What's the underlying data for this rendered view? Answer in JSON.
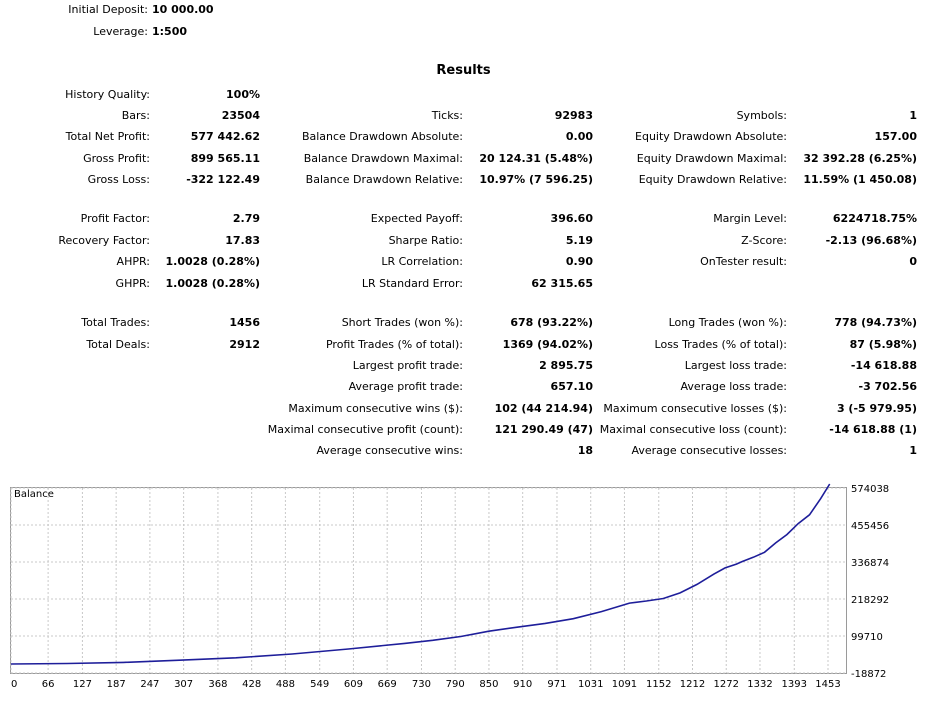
{
  "header": {
    "initial_deposit_label": "Initial Deposit:",
    "initial_deposit_value": "10 000.00",
    "leverage_label": "Leverage:",
    "leverage_value": "1:500"
  },
  "results_title": "Results",
  "stats": {
    "col1": [
      {
        "label": "History Quality:",
        "value": "100%"
      },
      {
        "label": "Bars:",
        "value": "23504"
      },
      {
        "label": "Total Net Profit:",
        "value": "577 442.62"
      },
      {
        "label": "Gross Profit:",
        "value": "899 565.11"
      },
      {
        "label": "Gross Loss:",
        "value": "-322 122.49"
      },
      {
        "label": "Profit Factor:",
        "value": "2.79"
      },
      {
        "label": "Recovery Factor:",
        "value": "17.83"
      },
      {
        "label": "AHPR:",
        "value": "1.0028 (0.28%)"
      },
      {
        "label": "GHPR:",
        "value": "1.0028 (0.28%)"
      },
      {
        "label": "Total Trades:",
        "value": "1456"
      },
      {
        "label": "Total Deals:",
        "value": "2912"
      }
    ],
    "col2": [
      {
        "label": "Ticks:",
        "value": "92983"
      },
      {
        "label": "Balance Drawdown Absolute:",
        "value": "0.00"
      },
      {
        "label": "Balance Drawdown Maximal:",
        "value": "20 124.31 (5.48%)"
      },
      {
        "label": "Balance Drawdown Relative:",
        "value": "10.97% (7 596.25)"
      },
      {
        "label": "Expected Payoff:",
        "value": "396.60"
      },
      {
        "label": "Sharpe Ratio:",
        "value": "5.19"
      },
      {
        "label": "LR Correlation:",
        "value": "0.90"
      },
      {
        "label": "LR Standard Error:",
        "value": "62 315.65"
      },
      {
        "label": "Short Trades (won %):",
        "value": "678 (93.22%)"
      },
      {
        "label": "Profit Trades (% of total):",
        "value": "1369 (94.02%)"
      },
      {
        "label": "Largest profit trade:",
        "value": "2 895.75"
      },
      {
        "label": "Average profit trade:",
        "value": "657.10"
      },
      {
        "label": "Maximum consecutive wins ($):",
        "value": "102 (44 214.94)"
      },
      {
        "label": "Maximal consecutive profit (count):",
        "value": "121 290.49 (47)"
      },
      {
        "label": "Average consecutive wins:",
        "value": "18"
      }
    ],
    "col3": [
      {
        "label": "Symbols:",
        "value": "1"
      },
      {
        "label": "Equity Drawdown Absolute:",
        "value": "157.00"
      },
      {
        "label": "Equity Drawdown Maximal:",
        "value": "32 392.28 (6.25%)"
      },
      {
        "label": "Equity Drawdown Relative:",
        "value": "11.59% (1 450.08)"
      },
      {
        "label": "Margin Level:",
        "value": "6224718.75%"
      },
      {
        "label": "Z-Score:",
        "value": "-2.13 (96.68%)"
      },
      {
        "label": "OnTester result:",
        "value": "0"
      },
      {
        "label": "Long Trades (won %):",
        "value": "778 (94.73%)"
      },
      {
        "label": "Loss Trades (% of total):",
        "value": "87 (5.98%)"
      },
      {
        "label": "Largest loss trade:",
        "value": "-14 618.88"
      },
      {
        "label": "Average loss trade:",
        "value": "-3 702.56"
      },
      {
        "label": "Maximum consecutive losses ($):",
        "value": "3 (-5 979.95)"
      },
      {
        "label": "Maximal consecutive loss (count):",
        "value": "-14 618.88 (1)"
      },
      {
        "label": "Average consecutive losses:",
        "value": "1"
      }
    ]
  },
  "colors": {
    "line": "#1e1e9a",
    "grid": "#c8c8c8",
    "frame": "#9a9a9a"
  },
  "chart_data": {
    "type": "line",
    "title": "Balance",
    "x_ticks": [
      0,
      66,
      127,
      187,
      247,
      307,
      368,
      428,
      488,
      549,
      609,
      669,
      730,
      790,
      850,
      910,
      971,
      1031,
      1091,
      1152,
      1212,
      1272,
      1332,
      1393,
      1453
    ],
    "y_ticks": [
      574038,
      455456,
      336874,
      218292,
      99710,
      -18872
    ],
    "xlim": [
      0,
      1485
    ],
    "ylim": [
      -18872,
      574038
    ],
    "grid": true,
    "series": [
      {
        "x": [
          0,
          100,
          200,
          300,
          400,
          500,
          600,
          700,
          750,
          800,
          850,
          900,
          950,
          1000,
          1050,
          1100,
          1130,
          1160,
          1190,
          1220,
          1250,
          1270,
          1290,
          1300,
          1320,
          1340,
          1360,
          1380,
          1400,
          1420,
          1440,
          1456
        ],
        "y": [
          10000,
          11500,
          15000,
          22000,
          30000,
          42000,
          58000,
          76000,
          86000,
          98000,
          115000,
          128000,
          140000,
          155000,
          178000,
          205000,
          212000,
          220000,
          238000,
          265000,
          298000,
          318000,
          330000,
          338000,
          352000,
          368000,
          398000,
          425000,
          460000,
          488000,
          540000,
          587000
        ]
      }
    ]
  }
}
